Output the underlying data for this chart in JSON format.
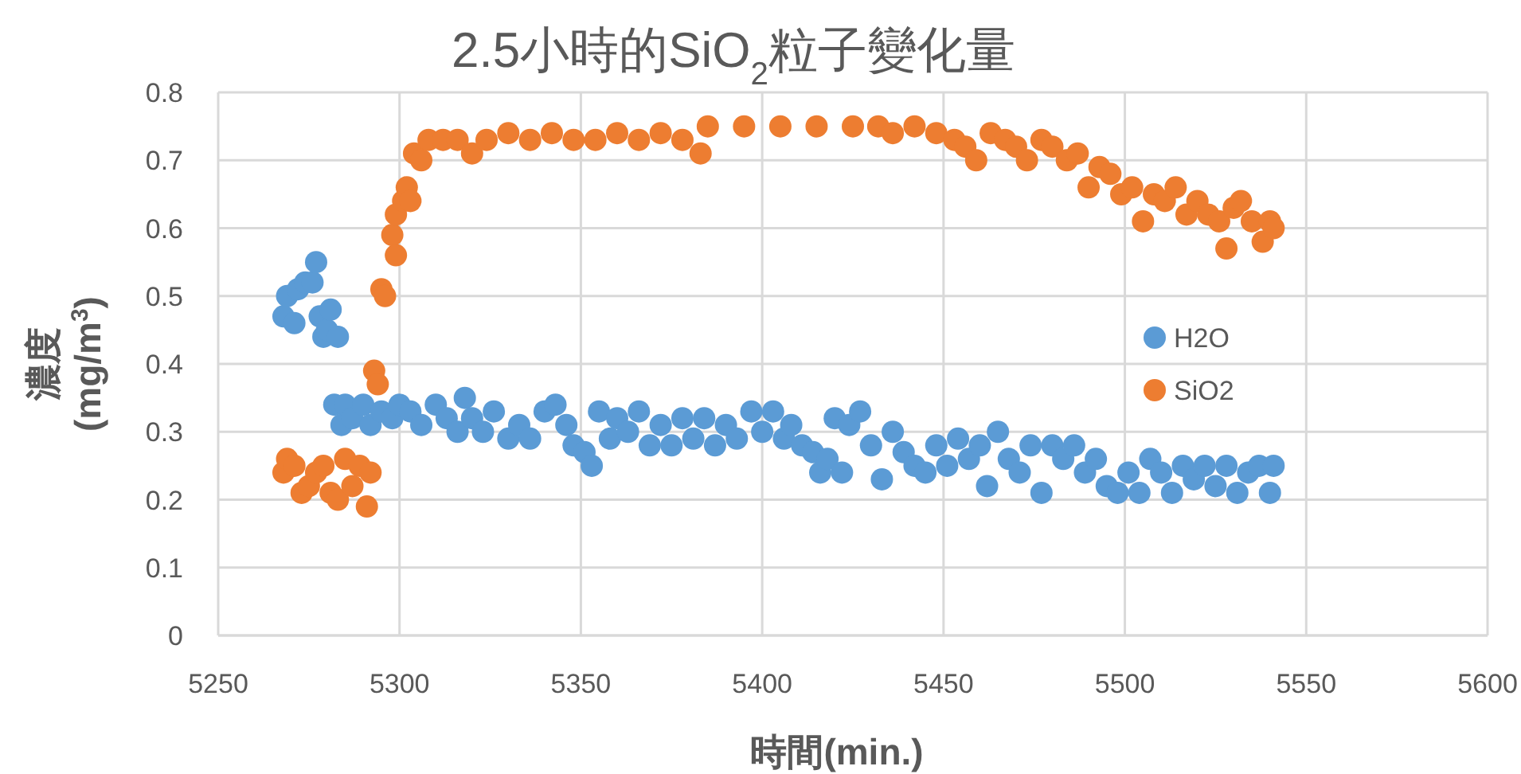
{
  "chart_data": {
    "type": "scatter",
    "title": "2.5小時的SiO$_{2}$粒子變化量",
    "xlabel": "時間(min.)",
    "ylabel": "濃度\n(mg/m$^{3}$)",
    "xlim": [
      5250,
      5600
    ],
    "xticks": [
      5250,
      5300,
      5350,
      5400,
      5450,
      5500,
      5550,
      5600
    ],
    "ylim": [
      0,
      0.8
    ],
    "yticks": [
      0,
      0.1,
      0.2,
      0.3,
      0.4,
      0.5,
      0.6,
      0.7,
      0.8
    ],
    "grid": true,
    "legend": "right",
    "marker": "circle",
    "series": [
      {
        "name": "H2O",
        "color": "#5b9bd5",
        "x": [
          5268,
          5269,
          5271,
          5272,
          5274,
          5276,
          5277,
          5278,
          5279,
          5280,
          5281,
          5283,
          5282,
          5284,
          5285,
          5287,
          5290,
          5292,
          5295,
          5298,
          5300,
          5303,
          5306,
          5310,
          5313,
          5316,
          5318,
          5320,
          5323,
          5326,
          5330,
          5333,
          5336,
          5340,
          5343,
          5346,
          5348,
          5351,
          5353,
          5355,
          5358,
          5360,
          5363,
          5366,
          5369,
          5372,
          5375,
          5378,
          5381,
          5384,
          5387,
          5390,
          5393,
          5397,
          5400,
          5403,
          5406,
          5408,
          5411,
          5414,
          5416,
          5418,
          5420,
          5422,
          5424,
          5427,
          5430,
          5433,
          5436,
          5439,
          5442,
          5445,
          5448,
          5451,
          5454,
          5457,
          5460,
          5462,
          5465,
          5468,
          5471,
          5474,
          5477,
          5480,
          5483,
          5486,
          5489,
          5492,
          5495,
          5498,
          5501,
          5504,
          5507,
          5510,
          5513,
          5516,
          5519,
          5522,
          5525,
          5528,
          5531,
          5534,
          5537,
          5540,
          5541
        ],
        "values": [
          0.47,
          0.5,
          0.46,
          0.51,
          0.52,
          0.52,
          0.55,
          0.47,
          0.44,
          0.45,
          0.48,
          0.44,
          0.34,
          0.31,
          0.34,
          0.32,
          0.34,
          0.31,
          0.33,
          0.32,
          0.34,
          0.33,
          0.31,
          0.34,
          0.32,
          0.3,
          0.35,
          0.32,
          0.3,
          0.33,
          0.29,
          0.31,
          0.29,
          0.33,
          0.34,
          0.31,
          0.28,
          0.27,
          0.25,
          0.33,
          0.29,
          0.32,
          0.3,
          0.33,
          0.28,
          0.31,
          0.28,
          0.32,
          0.29,
          0.32,
          0.28,
          0.31,
          0.29,
          0.33,
          0.3,
          0.33,
          0.29,
          0.31,
          0.28,
          0.27,
          0.24,
          0.26,
          0.32,
          0.24,
          0.31,
          0.33,
          0.28,
          0.23,
          0.3,
          0.27,
          0.25,
          0.24,
          0.28,
          0.25,
          0.29,
          0.26,
          0.28,
          0.22,
          0.3,
          0.26,
          0.24,
          0.28,
          0.21,
          0.28,
          0.26,
          0.28,
          0.24,
          0.26,
          0.22,
          0.21,
          0.24,
          0.21,
          0.26,
          0.24,
          0.21,
          0.25,
          0.23,
          0.25,
          0.22,
          0.25,
          0.21,
          0.24,
          0.25,
          0.21,
          0.25
        ]
      },
      {
        "name": "SiO2",
        "color": "#ed7d31",
        "x": [
          5268,
          5269,
          5271,
          5273,
          5275,
          5277,
          5279,
          5281,
          5283,
          5285,
          5287,
          5289,
          5291,
          5292,
          5293,
          5294,
          5295,
          5296,
          5298,
          5299,
          5299,
          5301,
          5302,
          5303,
          5304,
          5306,
          5308,
          5312,
          5316,
          5320,
          5324,
          5330,
          5336,
          5342,
          5348,
          5354,
          5360,
          5366,
          5372,
          5378,
          5383,
          5385,
          5395,
          5405,
          5415,
          5425,
          5432,
          5436,
          5442,
          5448,
          5453,
          5456,
          5459,
          5463,
          5467,
          5470,
          5473,
          5477,
          5480,
          5484,
          5487,
          5490,
          5493,
          5496,
          5499,
          5502,
          5505,
          5508,
          5511,
          5514,
          5517,
          5520,
          5523,
          5526,
          5528,
          5530,
          5532,
          5535,
          5538,
          5540,
          5541
        ],
        "values": [
          0.24,
          0.26,
          0.25,
          0.21,
          0.22,
          0.24,
          0.25,
          0.21,
          0.2,
          0.26,
          0.22,
          0.25,
          0.19,
          0.24,
          0.39,
          0.37,
          0.51,
          0.5,
          0.59,
          0.56,
          0.62,
          0.64,
          0.66,
          0.64,
          0.71,
          0.7,
          0.73,
          0.73,
          0.73,
          0.71,
          0.73,
          0.74,
          0.73,
          0.74,
          0.73,
          0.73,
          0.74,
          0.73,
          0.74,
          0.73,
          0.71,
          0.75,
          0.75,
          0.75,
          0.75,
          0.75,
          0.75,
          0.74,
          0.75,
          0.74,
          0.73,
          0.72,
          0.7,
          0.74,
          0.73,
          0.72,
          0.7,
          0.73,
          0.72,
          0.7,
          0.71,
          0.66,
          0.69,
          0.68,
          0.65,
          0.66,
          0.61,
          0.65,
          0.64,
          0.66,
          0.62,
          0.64,
          0.62,
          0.61,
          0.57,
          0.63,
          0.64,
          0.61,
          0.58,
          0.61,
          0.6
        ]
      }
    ]
  }
}
